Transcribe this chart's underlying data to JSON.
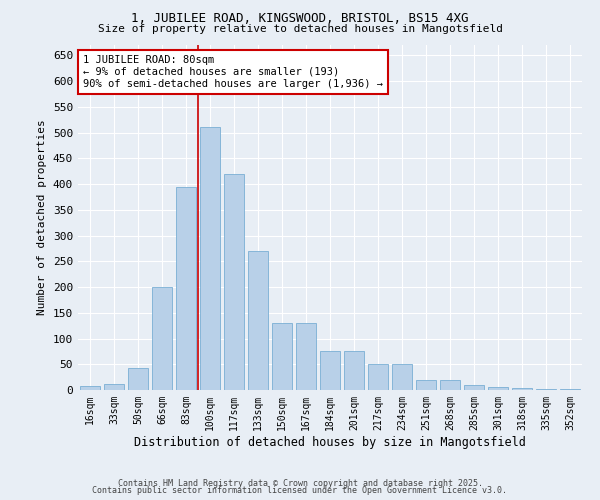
{
  "title1": "1, JUBILEE ROAD, KINGSWOOD, BRISTOL, BS15 4XG",
  "title2": "Size of property relative to detached houses in Mangotsfield",
  "xlabel": "Distribution of detached houses by size in Mangotsfield",
  "ylabel": "Number of detached properties",
  "categories": [
    "16sqm",
    "33sqm",
    "50sqm",
    "66sqm",
    "83sqm",
    "100sqm",
    "117sqm",
    "133sqm",
    "150sqm",
    "167sqm",
    "184sqm",
    "201sqm",
    "217sqm",
    "234sqm",
    "251sqm",
    "268sqm",
    "285sqm",
    "301sqm",
    "318sqm",
    "335sqm",
    "352sqm"
  ],
  "values": [
    7,
    12,
    42,
    200,
    395,
    510,
    420,
    270,
    130,
    130,
    75,
    75,
    50,
    50,
    20,
    20,
    10,
    5,
    4,
    2,
    1
  ],
  "bar_color": "#b8d0e8",
  "bar_edge_color": "#7aafd4",
  "vline_color": "#cc0000",
  "vline_index": 4.5,
  "annotation_text": "1 JUBILEE ROAD: 80sqm\n← 9% of detached houses are smaller (193)\n90% of semi-detached houses are larger (1,936) →",
  "annotation_box_facecolor": "#ffffff",
  "annotation_box_edgecolor": "#cc0000",
  "ylim": [
    0,
    670
  ],
  "yticks": [
    0,
    50,
    100,
    150,
    200,
    250,
    300,
    350,
    400,
    450,
    500,
    550,
    600,
    650
  ],
  "background_color": "#e8eef5",
  "grid_color": "#ffffff",
  "footer1": "Contains HM Land Registry data © Crown copyright and database right 2025.",
  "footer2": "Contains public sector information licensed under the Open Government Licence v3.0."
}
